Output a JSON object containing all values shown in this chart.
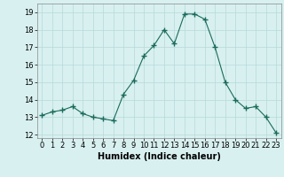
{
  "x": [
    0,
    1,
    2,
    3,
    4,
    5,
    6,
    7,
    8,
    9,
    10,
    11,
    12,
    13,
    14,
    15,
    16,
    17,
    18,
    19,
    20,
    21,
    22,
    23
  ],
  "y": [
    13.1,
    13.3,
    13.4,
    13.6,
    13.2,
    13.0,
    12.9,
    12.8,
    14.3,
    15.1,
    16.5,
    17.1,
    18.0,
    17.2,
    18.9,
    18.9,
    18.6,
    17.0,
    15.0,
    14.0,
    13.5,
    13.6,
    13.0,
    12.1
  ],
  "line_color": "#1a6b5a",
  "marker": "+",
  "marker_size": 4,
  "bg_color": "#d8f0f0",
  "grid_color": "#b8d8d8",
  "xlabel": "Humidex (Indice chaleur)",
  "xlabel_fontsize": 7,
  "tick_fontsize": 6,
  "ylim": [
    11.8,
    19.5
  ],
  "yticks": [
    12,
    13,
    14,
    15,
    16,
    17,
    18,
    19
  ],
  "xlim": [
    -0.5,
    23.5
  ],
  "xticks": [
    0,
    1,
    2,
    3,
    4,
    5,
    6,
    7,
    8,
    9,
    10,
    11,
    12,
    13,
    14,
    15,
    16,
    17,
    18,
    19,
    20,
    21,
    22,
    23
  ]
}
